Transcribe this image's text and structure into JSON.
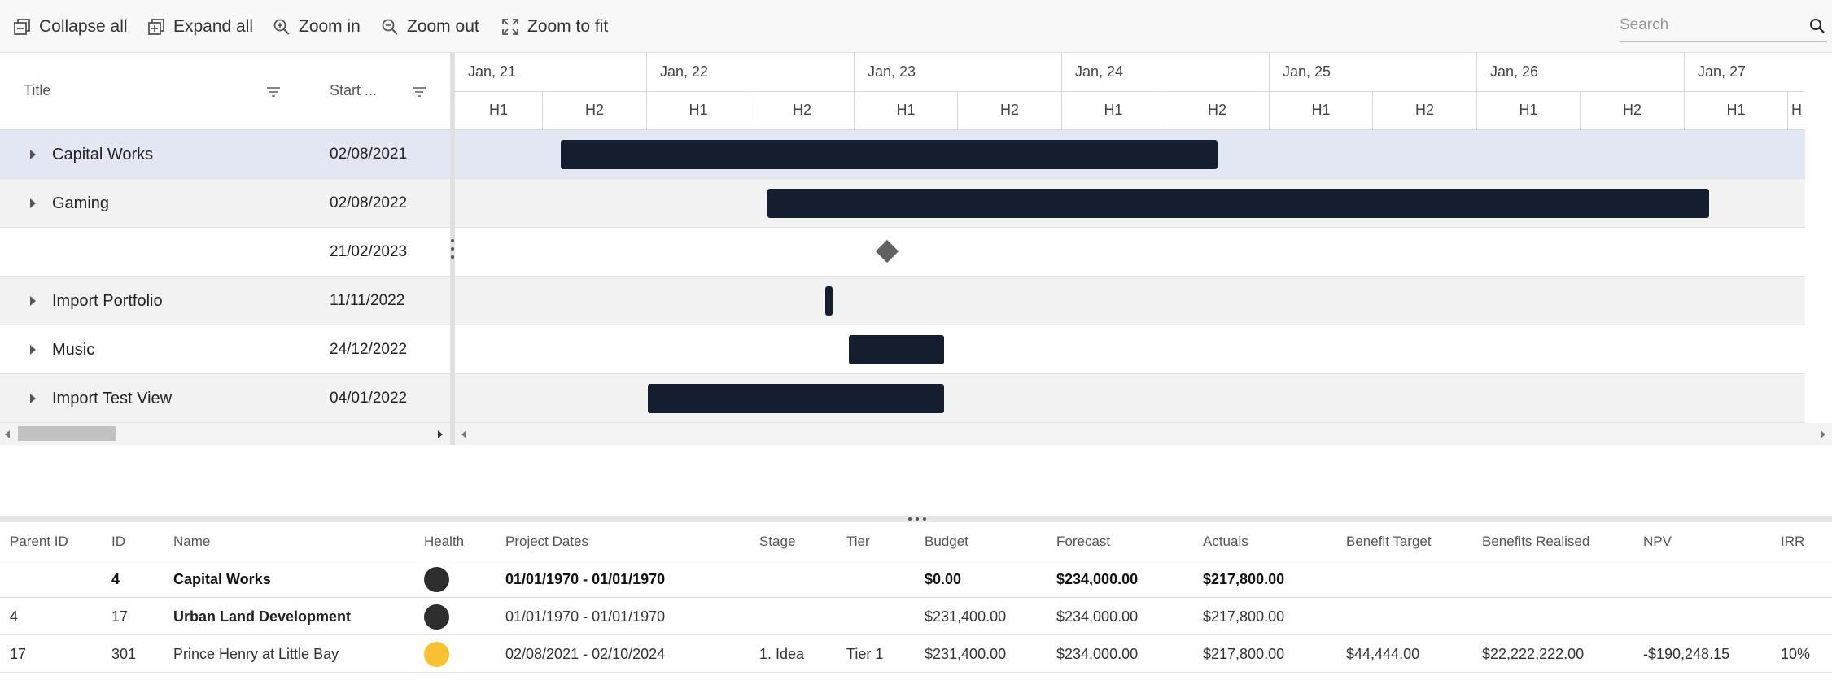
{
  "toolbar": {
    "collapse_all": "Collapse all",
    "expand_all": "Expand all",
    "zoom_in": "Zoom in",
    "zoom_out": "Zoom out",
    "zoom_to_fit": "Zoom to fit",
    "search_placeholder": "Search"
  },
  "gantt": {
    "columns": {
      "title": "Title",
      "start": "Start ..."
    },
    "years": [
      "Jan, 21",
      "Jan, 22",
      "Jan, 23",
      "Jan, 24",
      "Jan, 25",
      "Jan, 26",
      "Jan, 27"
    ],
    "halves": [
      "H1",
      "H2",
      "H1",
      "H2",
      "H1",
      "H2",
      "H1",
      "H2",
      "H1",
      "H2",
      "H1",
      "H2",
      "H1",
      "H"
    ],
    "rows": [
      {
        "title": "Capital Works",
        "start": "02/08/2021",
        "expandable": true,
        "selected": true,
        "type": "bar"
      },
      {
        "title": "Gaming",
        "start": "02/08/2022",
        "expandable": true,
        "selected": false,
        "type": "bar"
      },
      {
        "title": "",
        "start": "21/02/2023",
        "expandable": false,
        "selected": false,
        "type": "milestone"
      },
      {
        "title": "Import Portfolio",
        "start": "11/11/2022",
        "expandable": true,
        "selected": false,
        "type": "bar"
      },
      {
        "title": "Music",
        "start": "24/12/2022",
        "expandable": true,
        "selected": false,
        "type": "bar"
      },
      {
        "title": "Import Test View",
        "start": "04/01/2022",
        "expandable": true,
        "selected": false,
        "type": "bar"
      }
    ],
    "colors": {
      "bar": "#151e2e",
      "milestone": "#616161",
      "selected_row": "#e3e7f3",
      "alt_row": "#f2f2f2"
    }
  },
  "table": {
    "columns": [
      "Parent ID",
      "ID",
      "Name",
      "Health",
      "Project Dates",
      "Stage",
      "Tier",
      "Budget",
      "Forecast",
      "Actuals",
      "Benefit Target",
      "Benefits Realised",
      "NPV",
      "IRR"
    ],
    "rows": [
      {
        "parent_id": "",
        "id": "4",
        "name": "Capital Works",
        "health": "#2e2e2e",
        "dates": "01/01/1970 - 01/01/1970",
        "stage": "",
        "tier": "",
        "budget": "$0.00",
        "forecast": "$234,000.00",
        "actuals": "$217,800.00",
        "benefit_target": "",
        "benefits_realised": "",
        "npv": "",
        "irr": "",
        "bold": true
      },
      {
        "parent_id": "4",
        "id": "17",
        "name": "Urban Land Development",
        "health": "#2e2e2e",
        "dates": "01/01/1970 - 01/01/1970",
        "stage": "",
        "tier": "",
        "budget": "$231,400.00",
        "forecast": "$234,000.00",
        "actuals": "$217,800.00",
        "benefit_target": "",
        "benefits_realised": "",
        "npv": "",
        "irr": "",
        "bold": false,
        "semi": true
      },
      {
        "parent_id": "17",
        "id": "301",
        "name": "Prince Henry at Little Bay",
        "health": "#f7c131",
        "dates": "02/08/2021 - 02/10/2024",
        "stage": "1. Idea",
        "tier": "Tier 1",
        "budget": "$231,400.00",
        "forecast": "$234,000.00",
        "actuals": "$217,800.00",
        "benefit_target": "$44,444.00",
        "benefits_realised": "$22,222,222.00",
        "npv": "-$190,248.15",
        "irr": "10%",
        "bold": false
      }
    ]
  }
}
